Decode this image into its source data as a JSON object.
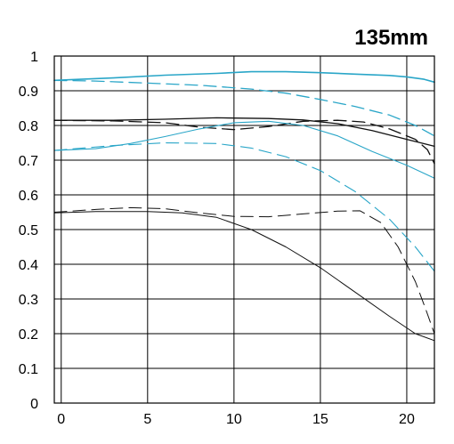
{
  "chart_data": {
    "type": "line",
    "title": "135mm",
    "xlabel": "",
    "ylabel": "",
    "xlim": [
      -0.4,
      21.6
    ],
    "ylim": [
      0,
      1
    ],
    "x_ticks": [
      0,
      5,
      10,
      15,
      20
    ],
    "x_tick_labels": [
      "0",
      "5",
      "10",
      "15",
      "20"
    ],
    "y_ticks": [
      0,
      0.1,
      0.2,
      0.3,
      0.4,
      0.5,
      0.6,
      0.7,
      0.8,
      0.9,
      1
    ],
    "y_tick_labels": [
      "0",
      "0.1",
      "0.2",
      "0.3",
      "0.4",
      "0.5",
      "0.6",
      "0.7",
      "0.8",
      "0.9",
      "1"
    ],
    "grid": true,
    "legend": "none",
    "colors": {
      "blue": "#2aa6c8",
      "black": "#111111",
      "grid": "#000000"
    },
    "series": [
      {
        "color": "blue",
        "dash": "solid",
        "width": 1.6,
        "points": [
          [
            -0.4,
            0.93
          ],
          [
            3,
            0.937
          ],
          [
            6,
            0.945
          ],
          [
            9,
            0.95
          ],
          [
            11,
            0.955
          ],
          [
            13,
            0.955
          ],
          [
            15,
            0.952
          ],
          [
            17,
            0.948
          ],
          [
            19,
            0.944
          ],
          [
            20,
            0.94
          ],
          [
            21,
            0.933
          ],
          [
            21.6,
            0.925
          ]
        ]
      },
      {
        "color": "blue",
        "dash": "dashed",
        "width": 1.3,
        "points": [
          [
            -0.4,
            0.93
          ],
          [
            2,
            0.928
          ],
          [
            5,
            0.922
          ],
          [
            8,
            0.916
          ],
          [
            11,
            0.905
          ],
          [
            13,
            0.893
          ],
          [
            15,
            0.875
          ],
          [
            17,
            0.855
          ],
          [
            19,
            0.83
          ],
          [
            20.5,
            0.8
          ],
          [
            21.6,
            0.77
          ]
        ]
      },
      {
        "color": "black",
        "dash": "solid",
        "width": 1.3,
        "points": [
          [
            -0.4,
            0.815
          ],
          [
            3,
            0.815
          ],
          [
            6,
            0.818
          ],
          [
            9,
            0.822
          ],
          [
            12,
            0.82
          ],
          [
            14,
            0.816
          ],
          [
            16,
            0.805
          ],
          [
            18,
            0.785
          ],
          [
            20,
            0.76
          ],
          [
            21.6,
            0.74
          ]
        ]
      },
      {
        "color": "black",
        "dash": "dashed",
        "width": 1.3,
        "points": [
          [
            -0.4,
            0.815
          ],
          [
            3,
            0.813
          ],
          [
            6,
            0.808
          ],
          [
            8,
            0.795
          ],
          [
            10,
            0.788
          ],
          [
            12,
            0.797
          ],
          [
            14,
            0.812
          ],
          [
            16,
            0.815
          ],
          [
            17.5,
            0.81
          ],
          [
            19,
            0.79
          ],
          [
            20.5,
            0.76
          ],
          [
            21.2,
            0.73
          ],
          [
            21.6,
            0.69
          ]
        ]
      },
      {
        "color": "blue",
        "dash": "solid",
        "width": 1.1,
        "points": [
          [
            -0.4,
            0.728
          ],
          [
            2,
            0.733
          ],
          [
            4,
            0.748
          ],
          [
            6,
            0.768
          ],
          [
            8,
            0.79
          ],
          [
            10,
            0.808
          ],
          [
            12,
            0.812
          ],
          [
            14,
            0.8
          ],
          [
            16,
            0.77
          ],
          [
            18,
            0.725
          ],
          [
            20,
            0.685
          ],
          [
            21.6,
            0.648
          ]
        ]
      },
      {
        "color": "blue",
        "dash": "dashed",
        "width": 1.1,
        "points": [
          [
            -0.4,
            0.728
          ],
          [
            3,
            0.742
          ],
          [
            6,
            0.75
          ],
          [
            9,
            0.748
          ],
          [
            11,
            0.735
          ],
          [
            13,
            0.71
          ],
          [
            15,
            0.67
          ],
          [
            17,
            0.61
          ],
          [
            19,
            0.53
          ],
          [
            20.5,
            0.45
          ],
          [
            21.6,
            0.38
          ]
        ]
      },
      {
        "color": "black",
        "dash": "solid",
        "width": 1.0,
        "points": [
          [
            -0.4,
            0.548
          ],
          [
            2,
            0.552
          ],
          [
            5,
            0.552
          ],
          [
            7,
            0.548
          ],
          [
            9,
            0.535
          ],
          [
            11,
            0.5
          ],
          [
            13,
            0.45
          ],
          [
            15,
            0.39
          ],
          [
            17,
            0.32
          ],
          [
            19,
            0.25
          ],
          [
            20.5,
            0.2
          ],
          [
            21.6,
            0.18
          ]
        ]
      },
      {
        "color": "black",
        "dash": "dashed",
        "width": 1.0,
        "points": [
          [
            -0.4,
            0.55
          ],
          [
            2,
            0.558
          ],
          [
            4,
            0.563
          ],
          [
            6,
            0.56
          ],
          [
            8,
            0.548
          ],
          [
            10,
            0.538
          ],
          [
            12,
            0.537
          ],
          [
            14,
            0.545
          ],
          [
            16,
            0.553
          ],
          [
            17.3,
            0.554
          ],
          [
            18.5,
            0.52
          ],
          [
            19.5,
            0.45
          ],
          [
            20.5,
            0.35
          ],
          [
            21.1,
            0.27
          ],
          [
            21.6,
            0.2
          ]
        ]
      }
    ]
  }
}
